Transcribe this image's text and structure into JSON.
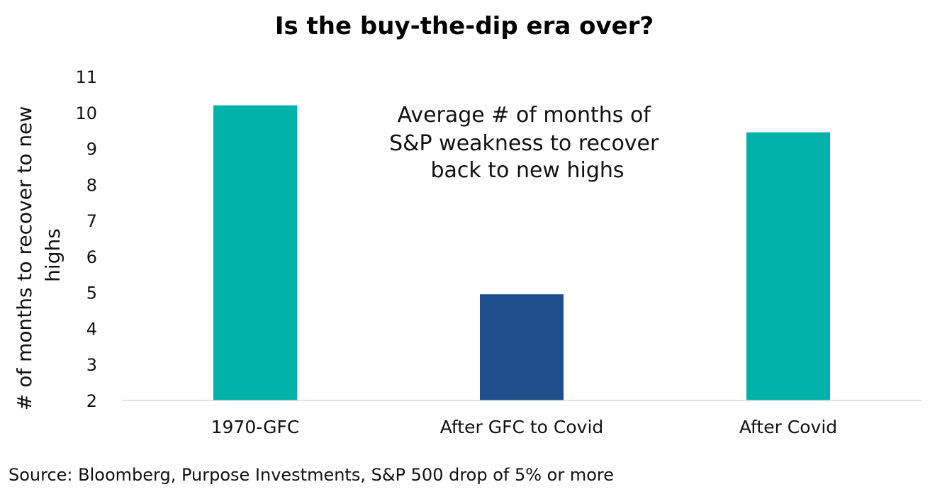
{
  "chart_data": {
    "type": "bar",
    "title": "Is the buy-the-dip era over?",
    "ylabel_lines": [
      "# of months to recover to new",
      "highs"
    ],
    "xlabel": "",
    "categories": [
      "1970-GFC",
      "After GFC to Covid",
      "After Covid"
    ],
    "values": [
      10.2,
      4.95,
      9.45
    ],
    "bar_colors": [
      "#00b2a9",
      "#1f4e8c",
      "#00b2a9"
    ],
    "ylim": [
      2,
      11
    ],
    "yticks": [
      "2",
      "3",
      "4",
      "5",
      "6",
      "7",
      "8",
      "9",
      "10",
      "11"
    ],
    "grid": false,
    "legend": "none",
    "annotation_lines": [
      "Average # of months of",
      "S&P weakness to recover",
      "back to new highs"
    ],
    "source": "Source: Bloomberg, Purpose Investments, S&P 500 drop of 5% or more"
  }
}
